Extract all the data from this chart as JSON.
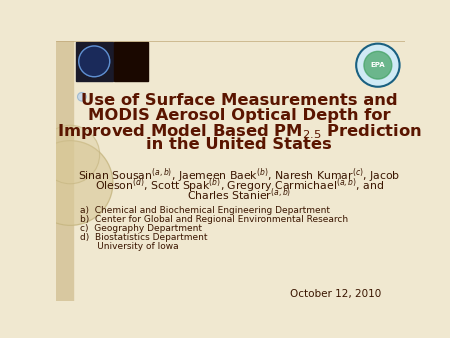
{
  "background_color": "#f0e8d0",
  "left_bar_color": "#d8c8a0",
  "title_line1": "Use of Surface Measurements and",
  "title_line2": "MODIS Aerosol Optical Depth for",
  "title_line3_pre": "Improved Model Based PM",
  "title_line3_sub": "2.5",
  "title_line3_post": " Prediction",
  "title_line4": "in the United States",
  "title_color": "#5a1500",
  "title_fontsize": 11.8,
  "authors_line1": "Sinan Sousan$^{(a,b)}$, Jaemeen Baek$^{(b)}$, Naresh Kumar$^{(c)}$, Jacob",
  "authors_line2": "Oleson$^{(d)}$, Scott Spak$^{(b)}$, Gregory Carmichael$^{(a,b)}$, and",
  "authors_line3": "Charles Stanier$^{(a,b)}$",
  "authors_color": "#3a1500",
  "authors_fontsize": 7.8,
  "affiliations": [
    "a)  Chemical and Biochemical Engineering Department",
    "b)  Center for Global and Regional Environmental Research",
    "c)  Geography Department",
    "d)  Biostatistics Department",
    "      University of Iowa"
  ],
  "affiliations_color": "#3a1500",
  "affiliations_fontsize": 6.5,
  "date": "October 12, 2010",
  "date_fontsize": 7.5,
  "date_color": "#3a1500",
  "logo_left1_color": "#1a1a2a",
  "logo_left2_color": "#1a0800",
  "epa_ring_color": "#1a6080",
  "epa_bg_color": "#d0eaf5",
  "circle_large_color": "#d8c898",
  "circle_small_color": "#c8d8e8",
  "circle_small_outline": "#a0b8c8"
}
